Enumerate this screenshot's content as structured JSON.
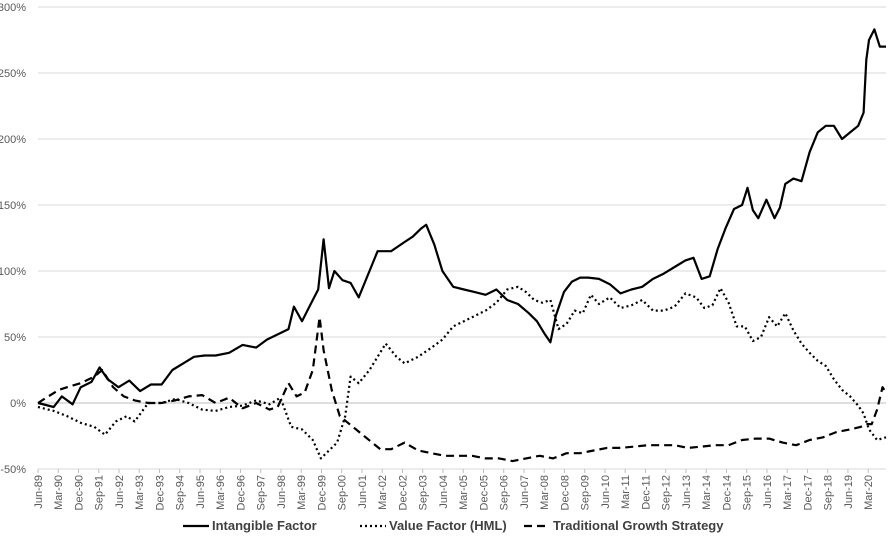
{
  "chart_data": {
    "type": "line",
    "title": "",
    "xlabel": "",
    "ylabel": "",
    "y_ticks": [
      "-50%",
      "0%",
      "50%",
      "100%",
      "150%",
      "200%",
      "250%",
      "300%"
    ],
    "ylim": [
      -50,
      300
    ],
    "x_tick_labels": [
      "Jun-89",
      "Mar-90",
      "Dec-90",
      "Sep-91",
      "Jun-92",
      "Mar-93",
      "Dec-93",
      "Sep-94",
      "Jun-95",
      "Mar-96",
      "Dec-96",
      "Sep-97",
      "Jun-98",
      "Mar-99",
      "Dec-99",
      "Sep-00",
      "Jun-01",
      "Mar-02",
      "Dec-02",
      "Sep-03",
      "Jun-04",
      "Mar-05",
      "Dec-05",
      "Sep-06",
      "Jun-07",
      "Mar-08",
      "Dec-08",
      "Sep-09",
      "Jun-10",
      "Mar-11",
      "Dec-11",
      "Sep-12",
      "Jun-13",
      "Mar-14",
      "Dec-14",
      "Sep-15",
      "Jun-16",
      "Mar-17",
      "Dec-17",
      "Sep-18",
      "Jun-19",
      "Mar-20"
    ],
    "xlim": [
      1989.42,
      2020.83
    ],
    "grid": "horizontal",
    "legend_position": "bottom",
    "series": [
      {
        "name": "Intangible Factor",
        "dash": "solid",
        "color": "#000000",
        "x": [
          1989.42,
          1990.0,
          1990.3,
          1990.7,
          1991.0,
          1991.4,
          1991.7,
          1992.0,
          1992.4,
          1992.8,
          1993.2,
          1993.6,
          1994.0,
          1994.4,
          1994.8,
          1995.2,
          1995.6,
          1996.0,
          1996.5,
          1997.0,
          1997.5,
          1997.9,
          1998.3,
          1998.7,
          1998.9,
          1999.2,
          1999.5,
          1999.8,
          2000.0,
          2000.2,
          2000.4,
          2000.7,
          2001.0,
          2001.3,
          2001.7,
          2002.0,
          2002.5,
          2003.0,
          2003.3,
          2003.6,
          2003.8,
          2004.1,
          2004.4,
          2004.8,
          2005.2,
          2005.6,
          2006.0,
          2006.4,
          2006.8,
          2007.2,
          2007.6,
          2007.9,
          2008.2,
          2008.4,
          2008.6,
          2008.9,
          2009.2,
          2009.5,
          2009.8,
          2010.2,
          2010.6,
          2011.0,
          2011.4,
          2011.8,
          2012.2,
          2012.6,
          2013.0,
          2013.4,
          2013.7,
          2014.0,
          2014.3,
          2014.6,
          2014.9,
          2015.2,
          2015.5,
          2015.7,
          2015.9,
          2016.1,
          2016.4,
          2016.7,
          2016.9,
          2017.1,
          2017.4,
          2017.7,
          2018.0,
          2018.3,
          2018.6,
          2018.9,
          2019.2,
          2019.5,
          2019.8,
          2020.0,
          2020.1,
          2020.2,
          2020.4,
          2020.6,
          2020.83
        ],
        "y": [
          0,
          -3,
          5,
          -1,
          12,
          16,
          27,
          18,
          12,
          17,
          9,
          14,
          14,
          25,
          30,
          35,
          36,
          36,
          38,
          44,
          42,
          48,
          52,
          56,
          73,
          62,
          74,
          86,
          124,
          87,
          100,
          93,
          91,
          80,
          100,
          115,
          115,
          122,
          126,
          132,
          135,
          120,
          100,
          88,
          86,
          84,
          82,
          86,
          78,
          75,
          68,
          62,
          52,
          46,
          66,
          84,
          92,
          95,
          95,
          94,
          90,
          83,
          86,
          88,
          94,
          98,
          103,
          108,
          110,
          94,
          96,
          117,
          133,
          147,
          150,
          163,
          146,
          140,
          154,
          140,
          148,
          166,
          170,
          168,
          190,
          205,
          210,
          210,
          200,
          205,
          210,
          220,
          260,
          275,
          283,
          270,
          270
        ]
      },
      {
        "name": "Value Factor (HML)",
        "dash": "dotted",
        "color": "#000000",
        "x": [
          1989.42,
          1990.0,
          1990.5,
          1991.0,
          1991.5,
          1991.9,
          1992.3,
          1992.7,
          1993.0,
          1993.5,
          1994.0,
          1994.5,
          1995.0,
          1995.5,
          1996.0,
          1996.5,
          1997.0,
          1997.5,
          1998.0,
          1998.4,
          1998.8,
          1999.2,
          1999.6,
          1999.9,
          2000.2,
          2000.5,
          2000.8,
          2001.0,
          2001.3,
          2001.7,
          2002.0,
          2002.3,
          2002.7,
          2003.0,
          2003.5,
          2004.0,
          2004.4,
          2004.8,
          2005.2,
          2005.6,
          2006.0,
          2006.4,
          2006.8,
          2007.2,
          2007.5,
          2007.8,
          2008.1,
          2008.4,
          2008.7,
          2009.0,
          2009.3,
          2009.6,
          2009.9,
          2010.2,
          2010.6,
          2011.0,
          2011.4,
          2011.8,
          2012.2,
          2012.6,
          2013.0,
          2013.4,
          2013.8,
          2014.1,
          2014.4,
          2014.7,
          2015.0,
          2015.3,
          2015.6,
          2015.9,
          2016.2,
          2016.5,
          2016.8,
          2017.1,
          2017.4,
          2017.7,
          2018.0,
          2018.3,
          2018.6,
          2018.9,
          2019.2,
          2019.5,
          2019.8,
          2020.0,
          2020.2,
          2020.5,
          2020.83
        ],
        "y": [
          -3,
          -6,
          -10,
          -15,
          -18,
          -24,
          -14,
          -10,
          -14,
          0,
          0,
          3,
          0,
          -5,
          -6,
          -3,
          -2,
          2,
          -1,
          4,
          -18,
          -20,
          -28,
          -42,
          -36,
          -30,
          -10,
          20,
          15,
          25,
          35,
          45,
          35,
          30,
          35,
          42,
          48,
          58,
          62,
          66,
          70,
          76,
          86,
          88,
          84,
          78,
          76,
          78,
          56,
          60,
          70,
          68,
          82,
          75,
          80,
          72,
          74,
          78,
          70,
          70,
          73,
          83,
          80,
          72,
          74,
          87,
          76,
          58,
          58,
          47,
          50,
          65,
          58,
          68,
          55,
          45,
          38,
          32,
          28,
          18,
          10,
          5,
          -2,
          -8,
          -20,
          -28,
          -26
        ]
      },
      {
        "name": "Traditional Growth Strategy",
        "dash": "dashed",
        "color": "#000000",
        "x": [
          1989.42,
          1989.8,
          1990.2,
          1990.5,
          1991.0,
          1991.5,
          1991.8,
          1992.2,
          1992.6,
          1993.0,
          1993.5,
          1994.0,
          1994.5,
          1995.0,
          1995.5,
          1996.0,
          1996.5,
          1997.0,
          1997.5,
          1998.0,
          1998.3,
          1998.7,
          1999.0,
          1999.3,
          1999.6,
          1999.85,
          2000.0,
          2000.3,
          2000.6,
          2000.9,
          2001.2,
          2001.5,
          2001.8,
          2002.1,
          2002.5,
          2003.0,
          2003.5,
          2004.0,
          2004.5,
          2005.0,
          2005.5,
          2006.0,
          2006.5,
          2007.0,
          2007.5,
          2008.0,
          2008.5,
          2009.0,
          2009.5,
          2010.0,
          2010.5,
          2011.0,
          2011.5,
          2012.0,
          2012.5,
          2013.0,
          2013.5,
          2014.0,
          2014.5,
          2015.0,
          2015.5,
          2016.0,
          2016.5,
          2017.0,
          2017.5,
          2018.0,
          2018.5,
          2019.0,
          2019.5,
          2019.9,
          2020.1,
          2020.3,
          2020.5,
          2020.7,
          2020.83
        ],
        "y": [
          0,
          5,
          10,
          12,
          15,
          20,
          25,
          12,
          5,
          2,
          0,
          0,
          2,
          5,
          6,
          0,
          4,
          -4,
          0,
          -5,
          -3,
          15,
          5,
          8,
          25,
          65,
          40,
          10,
          -10,
          -15,
          -20,
          -25,
          -30,
          -35,
          -35,
          -30,
          -36,
          -38,
          -40,
          -40,
          -40,
          -42,
          -42,
          -44,
          -42,
          -40,
          -42,
          -38,
          -38,
          -36,
          -34,
          -34,
          -33,
          -32,
          -32,
          -32,
          -34,
          -33,
          -32,
          -32,
          -28,
          -27,
          -27,
          -30,
          -32,
          -28,
          -26,
          -22,
          -20,
          -18,
          -16,
          -16,
          -5,
          12,
          8
        ]
      }
    ]
  }
}
